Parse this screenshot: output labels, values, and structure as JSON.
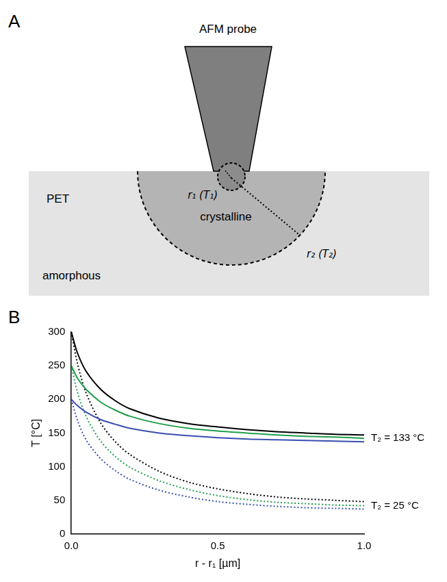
{
  "diagram": {
    "panel_label": "A",
    "probe_label": "AFM probe",
    "material_label": "PET",
    "outer_label": "amorphous",
    "inner_label": "crystalline",
    "r1_label": "r₁ (T₁)",
    "r2_label": "r₂ (T₂)"
  },
  "chart_data": {
    "type": "line",
    "panel_label": "B",
    "x_label": "r - r₁ [µm]",
    "y_label": "T [°C]",
    "x": [
      0,
      0.02,
      0.05,
      0.1,
      0.15,
      0.2,
      0.3,
      0.4,
      0.5,
      0.6,
      0.7,
      0.8,
      0.9,
      1.0
    ],
    "series": [
      {
        "color": "#000000",
        "line_style": "solid",
        "values": [
          300,
          270,
          242,
          215,
          198,
          186,
          172,
          164,
          159,
          155,
          152,
          150,
          148,
          147
        ]
      },
      {
        "color": "#1f9e4b",
        "line_style": "solid",
        "values": [
          250,
          232,
          215,
          196,
          184,
          175,
          164,
          157,
          153,
          150,
          147,
          145,
          144,
          142
        ]
      },
      {
        "color": "#3a4db0",
        "line_style": "solid",
        "values": [
          200,
          191,
          181,
          170,
          163,
          157,
          150,
          146,
          143,
          141,
          140,
          139,
          138,
          137
        ]
      },
      {
        "color": "#000000",
        "line_style": "dotted",
        "values": [
          300,
          255,
          210,
          165,
          137,
          118,
          93,
          77,
          67,
          60,
          55,
          52,
          50,
          48
        ]
      },
      {
        "color": "#1f9e4b",
        "line_style": "dotted",
        "values": [
          250,
          212,
          175,
          138,
          115,
          99,
          79,
          66,
          57,
          51,
          47,
          45,
          43,
          42
        ]
      },
      {
        "color": "#3a4db0",
        "line_style": "dotted",
        "values": [
          200,
          170,
          140,
          112,
          94,
          81,
          65,
          55,
          48,
          44,
          41,
          39,
          38,
          37
        ]
      }
    ],
    "annotations": [
      {
        "text": "T₂ = 133 °C",
        "y": 142
      },
      {
        "text": "T₂ = 25 °C",
        "y": 42
      }
    ],
    "xlim": [
      0,
      1.0
    ],
    "xticks": [
      {
        "value": 0,
        "label": "0.0"
      },
      {
        "value": 0.5,
        "label": "0.5"
      },
      {
        "value": 1.0,
        "label": "1.0"
      }
    ],
    "ylim": [
      0,
      300
    ],
    "yticks": [
      0,
      50,
      100,
      150,
      200,
      250,
      300
    ],
    "grid": false
  }
}
